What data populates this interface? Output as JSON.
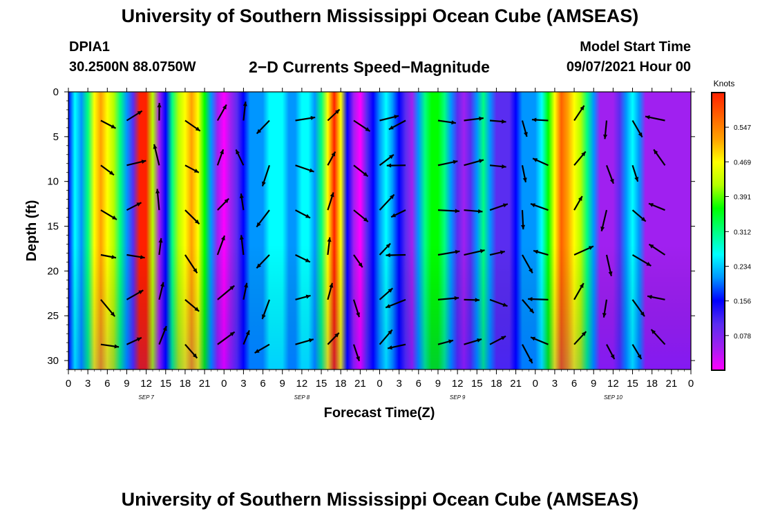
{
  "header": {
    "title": "University of Southern Mississippi Ocean Cube (AMSEAS)",
    "station_id": "DPIA1",
    "station_coords": "30.2500N  88.0750W",
    "plot_title": "2−D Currents Speed−Magnitude",
    "model_label": "Model Start Time",
    "model_date": "09/07/2021 Hour 00"
  },
  "footer": {
    "title": "University of Southern Mississippi Ocean Cube (AMSEAS)"
  },
  "chart_data": {
    "type": "heatmap",
    "xlabel": "Forecast Time(Z)",
    "ylabel": "Depth (ft)",
    "x_ticks": [
      "0",
      "3",
      "6",
      "9",
      "12",
      "15",
      "18",
      "21",
      "0",
      "3",
      "6",
      "9",
      "12",
      "15",
      "18",
      "21",
      "0",
      "3",
      "6",
      "9",
      "12",
      "15",
      "18",
      "21",
      "0",
      "3",
      "6",
      "9",
      "12",
      "15",
      "18",
      "21",
      "0"
    ],
    "x_range_hours": [
      0,
      96
    ],
    "day_labels": [
      {
        "label": "SEP 7",
        "hour": 12
      },
      {
        "label": "SEP 8",
        "hour": 36
      },
      {
        "label": "SEP 9",
        "hour": 60
      },
      {
        "label": "SEP 10",
        "hour": 84
      }
    ],
    "y_ticks": [
      "0",
      "5",
      "10",
      "15",
      "20",
      "25",
      "30"
    ],
    "y_range_ft": [
      0,
      31
    ],
    "y_inverted": true,
    "colorbar": {
      "title": "Knots",
      "labels": [
        "0.547",
        "0.469",
        "0.391",
        "0.312",
        "0.234",
        "0.156",
        "0.078"
      ],
      "range": [
        0,
        0.625
      ],
      "colors": [
        "#ff00ff",
        "#a020f0",
        "#5a2df0",
        "#0000ff",
        "#0096ff",
        "#00ffff",
        "#00ff80",
        "#00ff00",
        "#b4ff00",
        "#ffff00",
        "#ffa000",
        "#ff6000",
        "#ff2000"
      ]
    },
    "speed_profile_knots": [
      [
        0,
        0.16
      ],
      [
        1,
        0.26
      ],
      [
        2,
        0.2
      ],
      [
        3,
        0.32
      ],
      [
        4,
        0.46
      ],
      [
        5,
        0.5
      ],
      [
        6,
        0.47
      ],
      [
        7,
        0.4
      ],
      [
        8,
        0.3
      ],
      [
        9,
        0.2
      ],
      [
        10,
        0.14
      ],
      [
        11,
        0.6
      ],
      [
        12,
        0.6
      ],
      [
        13,
        0.42
      ],
      [
        14,
        0.08
      ],
      [
        15,
        0.16
      ],
      [
        16,
        0.3
      ],
      [
        17,
        0.4
      ],
      [
        18,
        0.47
      ],
      [
        19,
        0.5
      ],
      [
        20,
        0.46
      ],
      [
        21,
        0.38
      ],
      [
        22,
        0.2
      ],
      [
        23,
        0.08
      ],
      [
        24,
        0.03
      ],
      [
        25,
        0.08
      ],
      [
        26,
        0.14
      ],
      [
        27,
        0.18
      ],
      [
        28,
        0.2
      ],
      [
        29,
        0.22
      ],
      [
        30,
        0.24
      ],
      [
        31,
        0.26
      ],
      [
        32,
        0.26
      ],
      [
        33,
        0.25
      ],
      [
        34,
        0.24
      ],
      [
        35,
        0.24
      ],
      [
        36,
        0.25
      ],
      [
        37,
        0.26
      ],
      [
        38,
        0.22
      ],
      [
        39,
        0.3
      ],
      [
        40,
        0.45
      ],
      [
        41,
        0.58
      ],
      [
        42,
        0.48
      ],
      [
        43,
        0.18
      ],
      [
        44,
        0.08
      ],
      [
        45,
        0.04
      ],
      [
        46,
        0.1
      ],
      [
        47,
        0.18
      ],
      [
        48,
        0.24
      ],
      [
        49,
        0.28
      ],
      [
        50,
        0.24
      ],
      [
        51,
        0.16
      ],
      [
        52,
        0.1
      ],
      [
        53,
        0.07
      ],
      [
        54,
        0.2
      ],
      [
        55,
        0.3
      ],
      [
        56,
        0.38
      ],
      [
        57,
        0.34
      ],
      [
        58,
        0.3
      ],
      [
        59,
        0.2
      ],
      [
        60,
        0.12
      ],
      [
        61,
        0.08
      ],
      [
        62,
        0.14
      ],
      [
        63,
        0.24
      ],
      [
        64,
        0.32
      ],
      [
        65,
        0.2
      ],
      [
        66,
        0.12
      ],
      [
        67,
        0.1
      ],
      [
        68,
        0.12
      ],
      [
        69,
        0.16
      ],
      [
        70,
        0.2
      ],
      [
        71,
        0.22
      ],
      [
        72,
        0.24
      ],
      [
        73,
        0.26
      ],
      [
        74,
        0.36
      ],
      [
        75,
        0.48
      ],
      [
        76,
        0.54
      ],
      [
        77,
        0.5
      ],
      [
        78,
        0.46
      ],
      [
        79,
        0.4
      ],
      [
        80,
        0.3
      ],
      [
        81,
        0.2
      ],
      [
        82,
        0.08
      ],
      [
        83,
        0.06
      ],
      [
        84,
        0.06
      ],
      [
        85,
        0.12
      ],
      [
        86,
        0.2
      ],
      [
        87,
        0.28
      ],
      [
        88,
        0.2
      ],
      [
        89,
        0.08
      ]
    ]
  }
}
